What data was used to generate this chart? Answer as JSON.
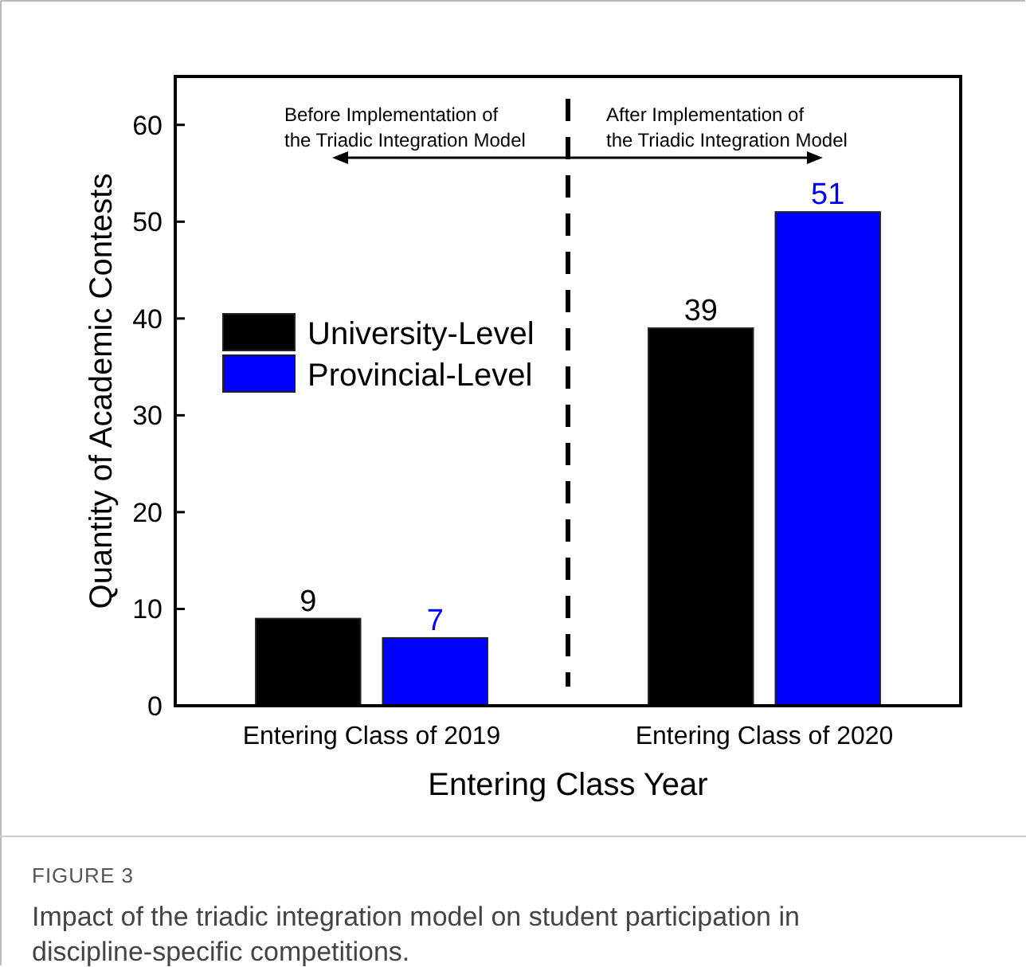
{
  "chart_data": {
    "type": "bar",
    "categories": [
      "Entering Class of 2019",
      "Entering Class of 2020"
    ],
    "series": [
      {
        "name": "University-Level",
        "color": "#000000",
        "values": [
          9,
          39
        ]
      },
      {
        "name": "Provincial-Level",
        "color": "#0000ff",
        "values": [
          7,
          51
        ]
      }
    ],
    "xlabel": "Entering Class Year",
    "ylabel": "Quantity of Academic Contests",
    "ylim": [
      0,
      65
    ],
    "yticks": [
      0,
      10,
      20,
      30,
      40,
      50,
      60
    ],
    "data_labels": true,
    "legend": "left",
    "grid": false,
    "annotations": [
      "Before Implementation of\nthe Triadic Integration Model",
      "After Implementation of\nthe Triadic Integration Model",
      "FIGURE 3",
      "Impact of the triadic integration model on student participation in\ndiscipline-specific competitions."
    ]
  }
}
